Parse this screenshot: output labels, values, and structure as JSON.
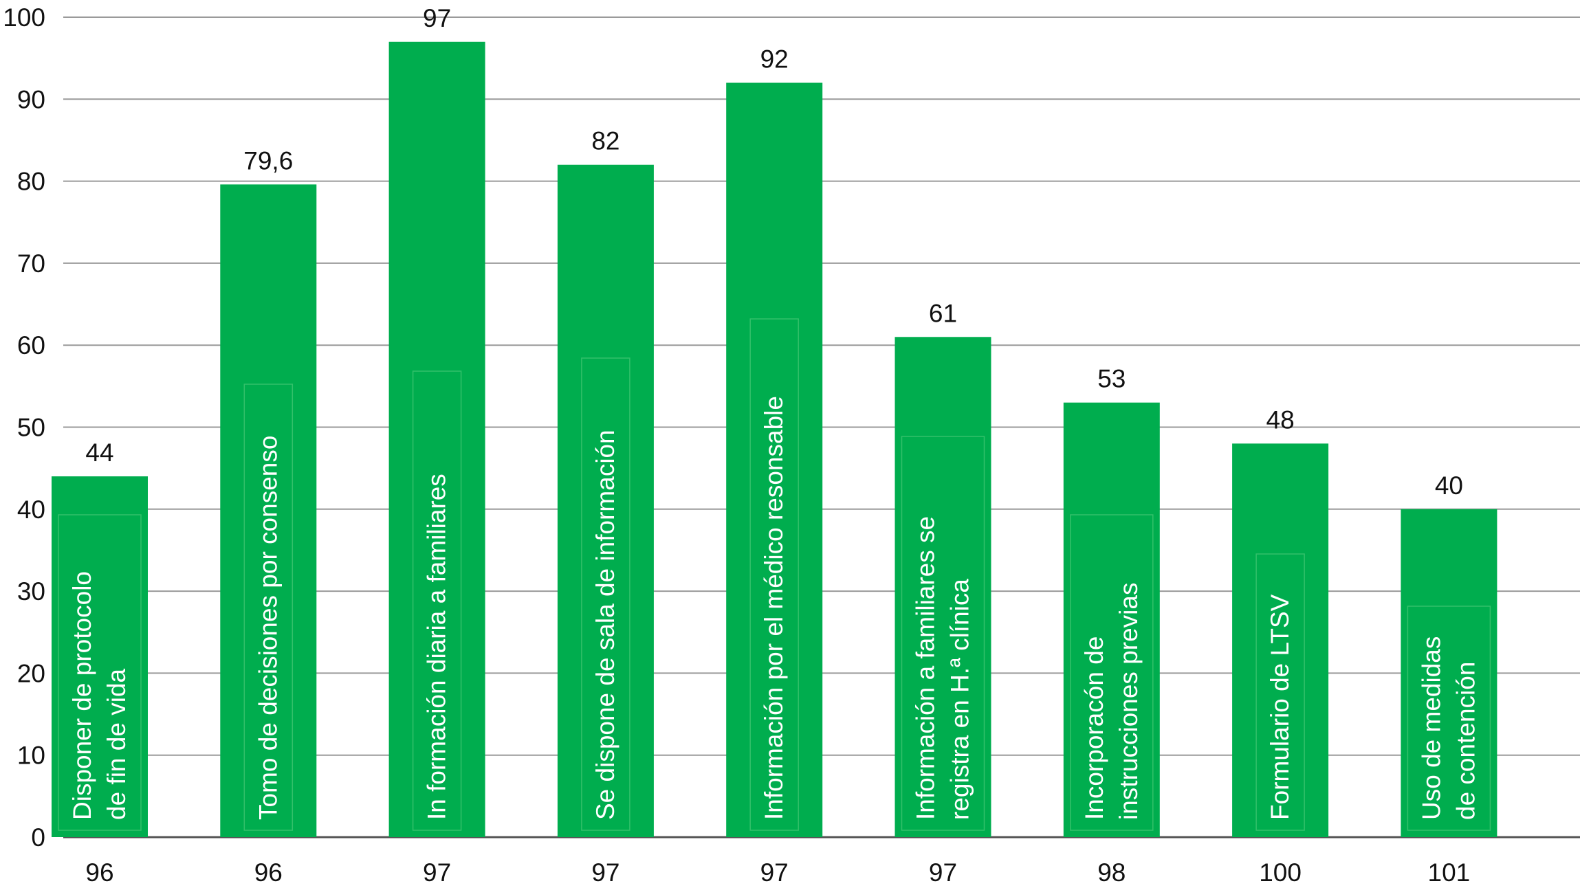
{
  "chart_data": {
    "type": "bar",
    "title": "",
    "xlabel": "",
    "ylabel": "",
    "ylim": [
      0,
      100
    ],
    "yticks": [
      "0",
      "10",
      "20",
      "30",
      "40",
      "50",
      "60",
      "70",
      "80",
      "90",
      "100"
    ],
    "grid": "horizontal",
    "bar_color": "#00ad4e",
    "bars": [
      {
        "category": "96",
        "value": 44,
        "label": "44",
        "text": [
          "Disponer de protocolo",
          "de fin de vida"
        ]
      },
      {
        "category": "96",
        "value": 79.6,
        "label": "79,6",
        "text": [
          "Tomo de decisiones por consenso"
        ]
      },
      {
        "category": "97",
        "value": 97,
        "label": "97",
        "text": [
          "In formación diaria a familiares"
        ]
      },
      {
        "category": "97",
        "value": 82,
        "label": "82",
        "text": [
          "Se dispone de sala de información"
        ]
      },
      {
        "category": "97",
        "value": 92,
        "label": "92",
        "text": [
          "Información por el médico resonsable"
        ]
      },
      {
        "category": "97",
        "value": 61,
        "label": "61",
        "text": [
          "Información a familiares se",
          "registra en H.ª clínica"
        ]
      },
      {
        "category": "98",
        "value": 53,
        "label": "53",
        "text": [
          "Incorporacón de",
          "instrucciones previas"
        ]
      },
      {
        "category": "100",
        "value": 48,
        "label": "48",
        "text": [
          "Formulario de LTSV"
        ]
      },
      {
        "category": "101",
        "value": 40,
        "label": "40",
        "text": [
          "Uso de medidas",
          "de contención"
        ]
      }
    ]
  }
}
